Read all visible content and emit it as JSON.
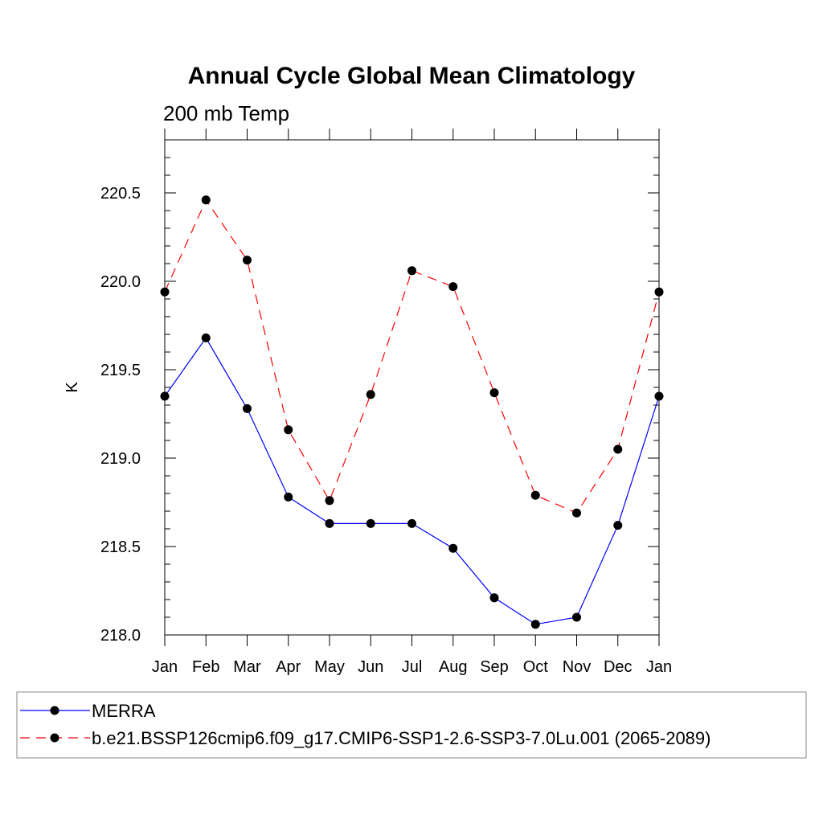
{
  "chart_data": {
    "type": "line",
    "title": "Annual Cycle Global Mean Climatology",
    "subtitle": "200 mb Temp",
    "xlabel": "",
    "ylabel": "K",
    "categories": [
      "Jan",
      "Feb",
      "Mar",
      "Apr",
      "May",
      "Jun",
      "Jul",
      "Aug",
      "Sep",
      "Oct",
      "Nov",
      "Dec",
      "Jan"
    ],
    "ylim": [
      218.0,
      220.8
    ],
    "yticks": [
      218.0,
      218.5,
      219.0,
      219.5,
      220.0,
      220.5
    ],
    "ytick_labels": [
      "218.0",
      "218.5",
      "219.0",
      "219.5",
      "220.0",
      "220.5"
    ],
    "series": [
      {
        "name": "MERRA",
        "color": "#0000ff",
        "dash": "solid",
        "marker": "filled-circle",
        "values": [
          219.35,
          219.68,
          219.28,
          218.78,
          218.63,
          218.63,
          218.63,
          218.49,
          218.21,
          218.06,
          218.1,
          218.62,
          219.35
        ]
      },
      {
        "name": "b.e21.BSSP126cmip6.f09_g17.CMIP6-SSP1-2.6-SSP3-7.0Lu.001 (2065-2089)",
        "color": "#ff0000",
        "dash": "dashed",
        "marker": "filled-circle",
        "values": [
          219.94,
          220.46,
          220.12,
          219.16,
          218.76,
          219.36,
          220.06,
          219.97,
          219.37,
          218.79,
          218.69,
          219.05,
          219.94
        ]
      }
    ],
    "legend_position": "bottom"
  }
}
